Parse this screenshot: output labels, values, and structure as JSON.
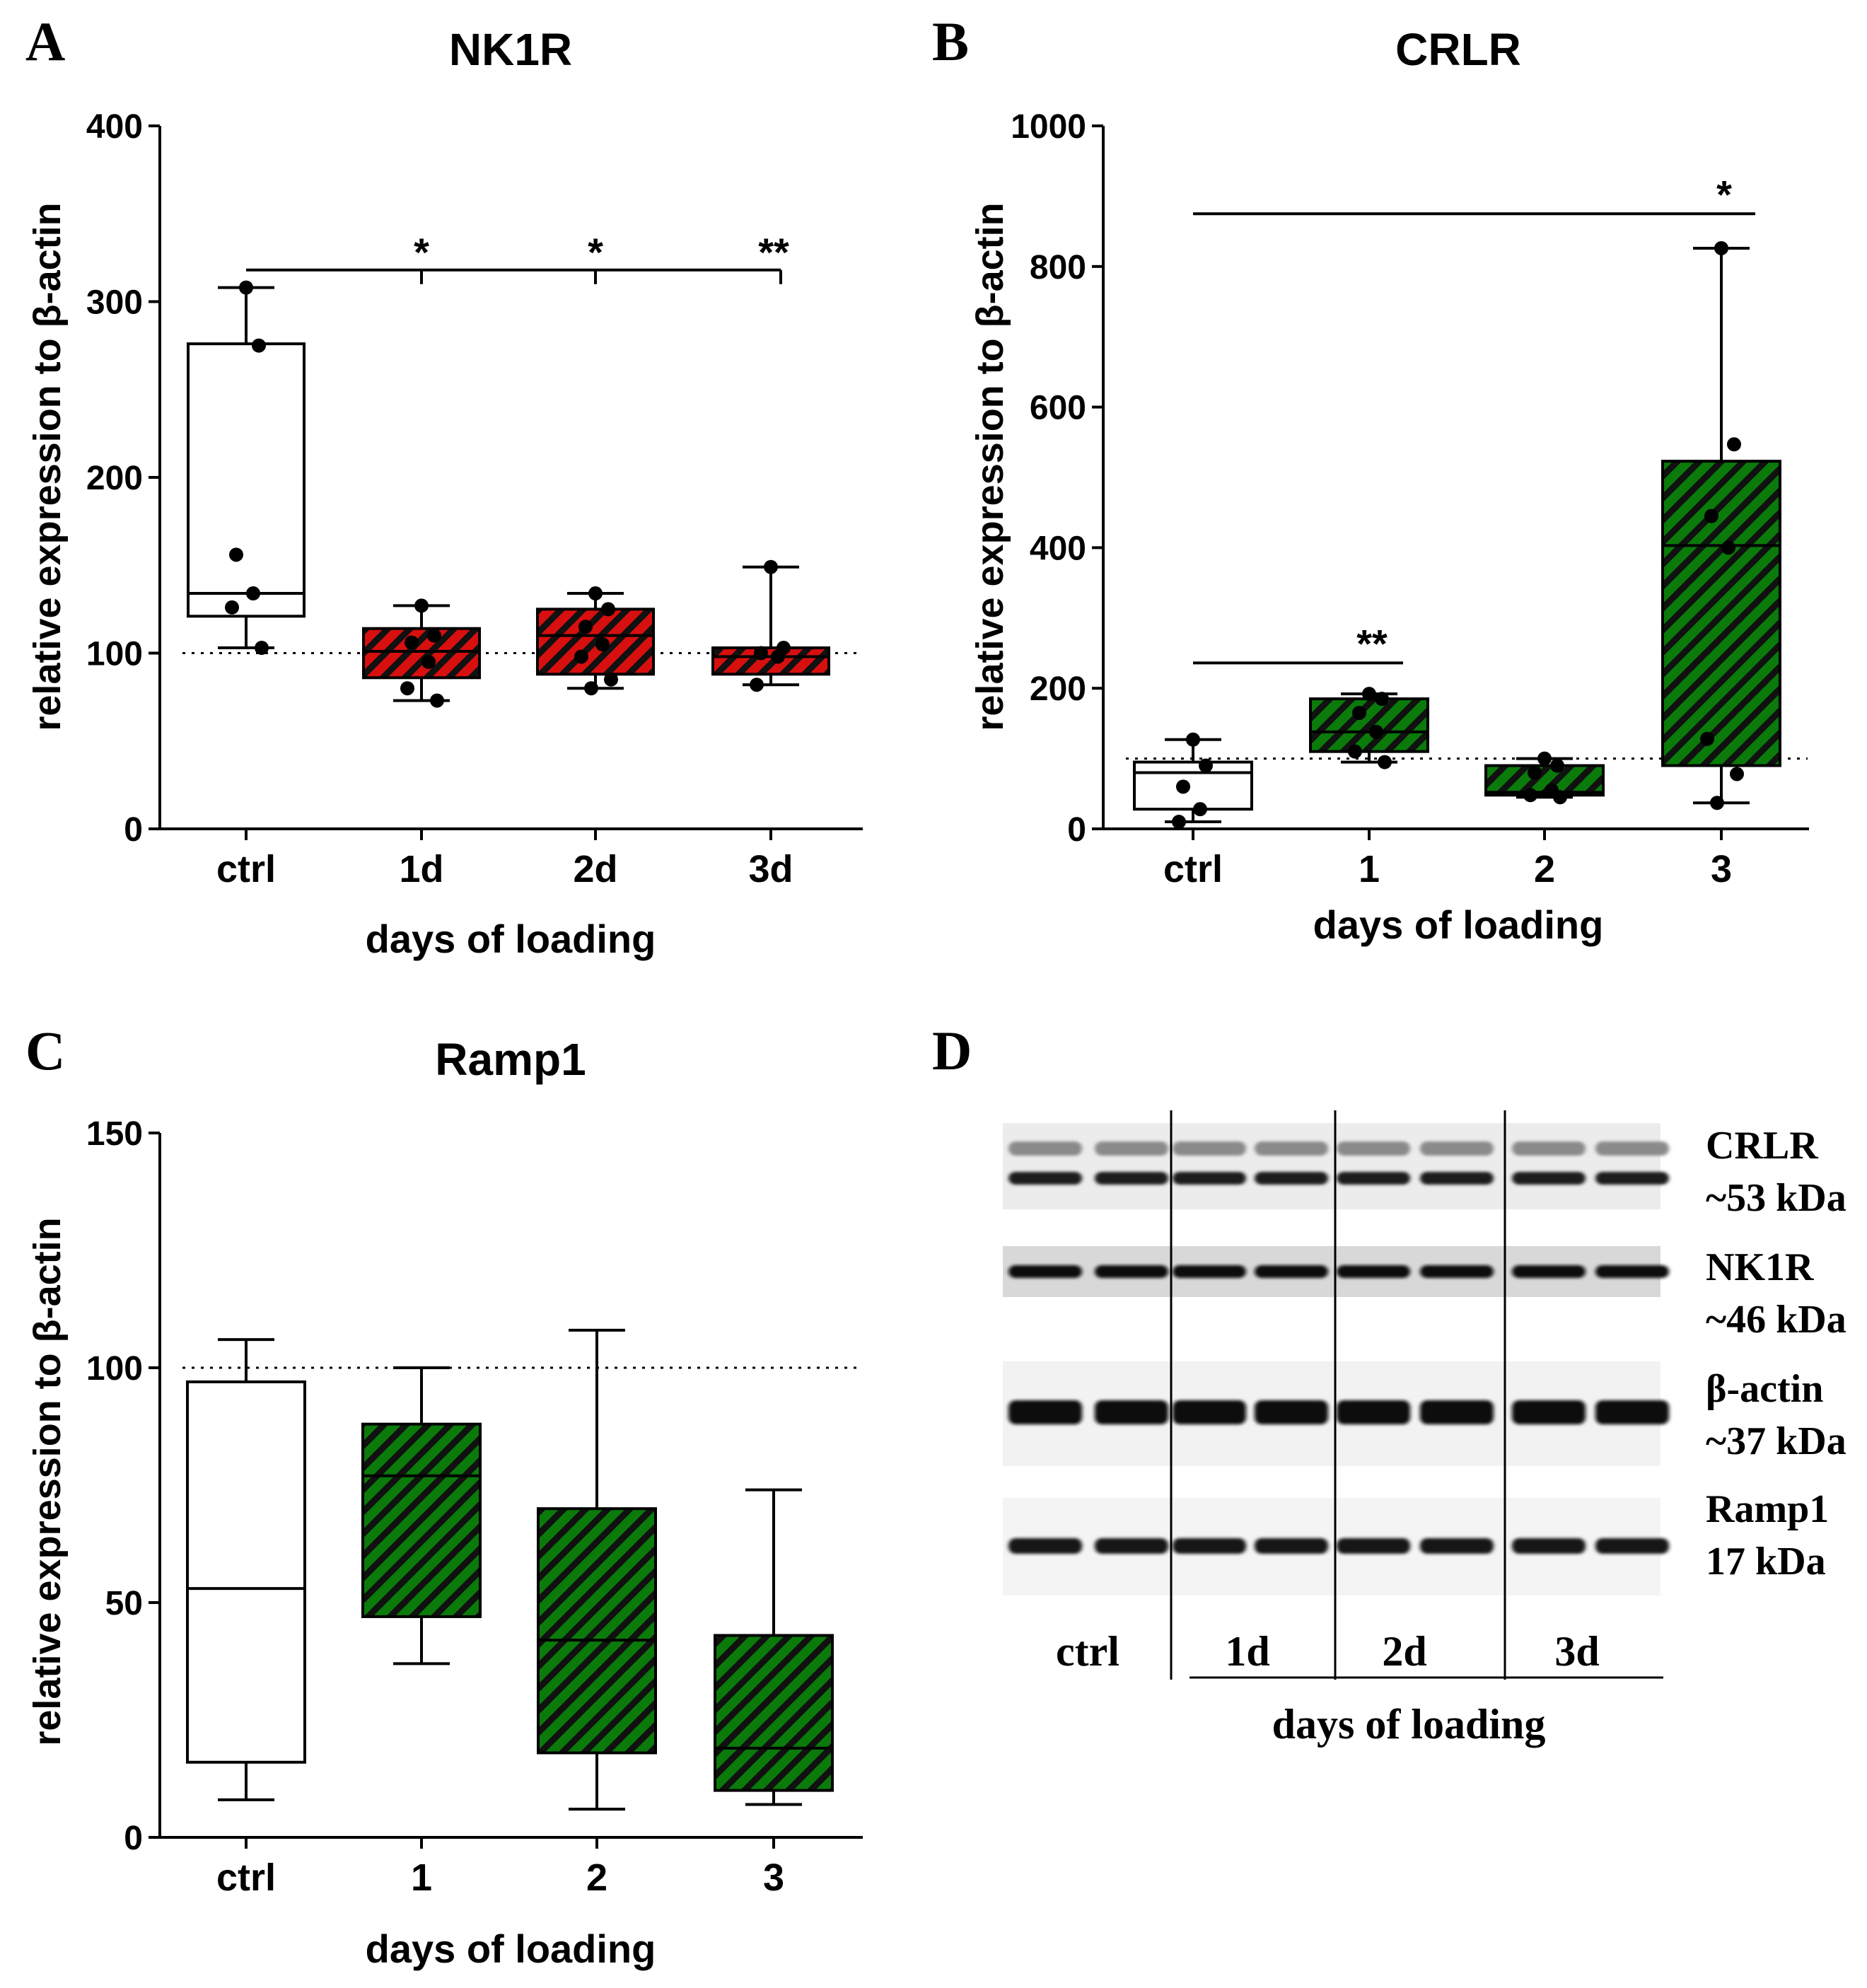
{
  "colors": {
    "red": "#d80f0f",
    "green": "#0a7a0a",
    "hatch": "#111111",
    "ink": "#000000",
    "white": "#ffffff"
  },
  "panels": {
    "A": {
      "letter": "A",
      "title": "NK1R",
      "ylabel": "relative expression to β-actin",
      "xlabel": "days of loading",
      "ylim": [
        0,
        400
      ],
      "yticks": [
        "0",
        "100",
        "200",
        "300",
        "400"
      ],
      "ref_line": 100
    },
    "B": {
      "letter": "B",
      "title": "CRLR",
      "ylabel": "relative expression to β-actin",
      "xlabel": "days of loading",
      "ylim": [
        0,
        1000
      ],
      "yticks": [
        "0",
        "200",
        "400",
        "600",
        "800",
        "1000"
      ],
      "ref_line": 100
    },
    "C": {
      "letter": "C",
      "title": "Ramp1",
      "ylabel": "relative expression to β-actin",
      "xlabel": "days of loading",
      "ylim": [
        0,
        150
      ],
      "yticks": [
        "0",
        "50",
        "100",
        "150"
      ],
      "ref_line": 100
    },
    "D": {
      "letter": "D",
      "blot_rows": [
        {
          "name": "CRLR",
          "size": "~53 kDa"
        },
        {
          "name": "NK1R",
          "size": "~46 kDa"
        },
        {
          "name": "β-actin",
          "size": "~37 kDa"
        },
        {
          "name": "Ramp1",
          "size": "17 kDa"
        }
      ],
      "lane_groups": [
        "ctrl",
        "1d",
        "2d",
        "3d"
      ],
      "xlabel": "days of loading"
    }
  },
  "chart_data": [
    {
      "panel": "A",
      "type": "box",
      "title": "NK1R",
      "xlabel": "days of loading",
      "ylabel": "relative expression to β-actin",
      "ylim": [
        0,
        400
      ],
      "reference_line": 100,
      "categories": [
        "ctrl",
        "1d",
        "2d",
        "3d"
      ],
      "fill": [
        "white",
        "red-hatched",
        "red-hatched",
        "red-hatched"
      ],
      "boxes": [
        {
          "min": 103,
          "q1": 121,
          "median": 134,
          "q3": 276,
          "max": 308
        },
        {
          "min": 73,
          "q1": 86,
          "median": 101,
          "q3": 114,
          "max": 127
        },
        {
          "min": 80,
          "q1": 88,
          "median": 110,
          "q3": 125,
          "max": 134
        },
        {
          "min": 82,
          "q1": 88,
          "median": 98,
          "q3": 103,
          "max": 149
        }
      ],
      "points": [
        [
          308,
          275,
          156,
          134,
          126,
          103
        ],
        [
          127,
          110,
          106,
          95,
          80,
          73
        ],
        [
          134,
          125,
          115,
          105,
          98,
          85,
          80
        ],
        [
          149,
          103,
          100,
          98,
          82
        ]
      ],
      "significance": {
        "bracket_y": 318,
        "labels": [
          "*",
          "*",
          "**"
        ]
      }
    },
    {
      "panel": "B",
      "type": "box",
      "title": "CRLR",
      "xlabel": "days of loading",
      "ylabel": "relative expression to β-actin",
      "ylim": [
        0,
        1000
      ],
      "reference_line": 100,
      "categories": [
        "ctrl",
        "1",
        "2",
        "3"
      ],
      "fill": [
        "white",
        "green-hatched",
        "green-hatched",
        "green-hatched"
      ],
      "boxes": [
        {
          "min": 10,
          "q1": 28,
          "median": 80,
          "q3": 95,
          "max": 127
        },
        {
          "min": 95,
          "q1": 110,
          "median": 138,
          "q3": 185,
          "max": 192
        },
        {
          "min": 45,
          "q1": 48,
          "median": 52,
          "q3": 90,
          "max": 100
        },
        {
          "min": 37,
          "q1": 90,
          "median": 403,
          "q3": 523,
          "max": 826
        }
      ],
      "points": [
        [
          127,
          90,
          60,
          28,
          10
        ],
        [
          192,
          185,
          165,
          138,
          110,
          95
        ],
        [
          100,
          90,
          80,
          55,
          48,
          45
        ],
        [
          826,
          547,
          445,
          400,
          128,
          78,
          37
        ]
      ],
      "significance": [
        {
          "from": "ctrl",
          "to": "1",
          "label": "**",
          "y": 236
        },
        {
          "from": "ctrl",
          "to": "3",
          "label": "*",
          "y": 875
        }
      ]
    },
    {
      "panel": "C",
      "type": "box",
      "title": "Ramp1",
      "xlabel": "days of loading",
      "ylabel": "relative expression to β-actin",
      "ylim": [
        0,
        150
      ],
      "reference_line": 100,
      "categories": [
        "ctrl",
        "1",
        "2",
        "3"
      ],
      "fill": [
        "white",
        "green-hatched",
        "green-hatched",
        "green-hatched"
      ],
      "boxes": [
        {
          "min": 8,
          "q1": 16,
          "median": 53,
          "q3": 97,
          "max": 106
        },
        {
          "min": 37,
          "q1": 47,
          "median": 77,
          "q3": 88,
          "max": 100
        },
        {
          "min": 6,
          "q1": 18,
          "median": 42,
          "q3": 70,
          "max": 108
        },
        {
          "min": 7,
          "q1": 10,
          "median": 19,
          "q3": 43,
          "max": 74
        }
      ]
    }
  ]
}
